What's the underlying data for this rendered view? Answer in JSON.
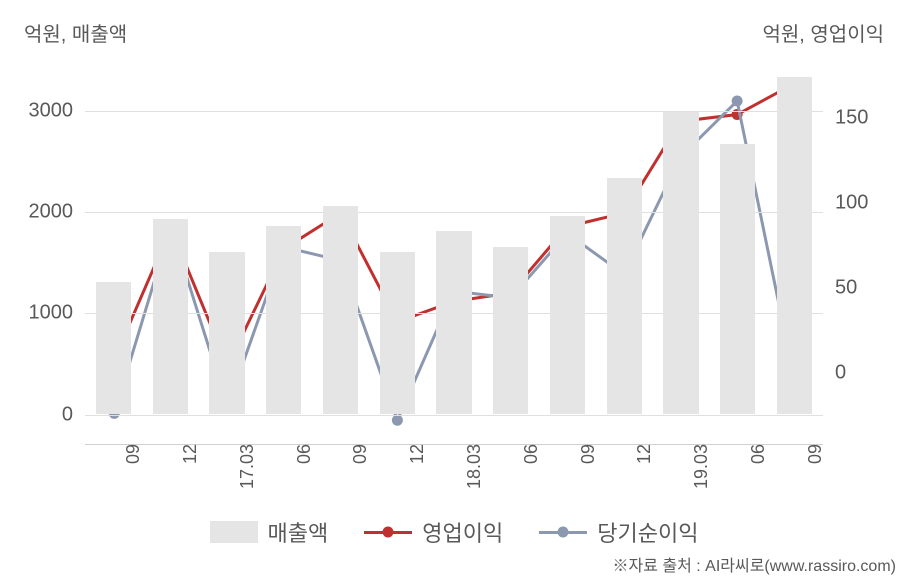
{
  "chart": {
    "left_axis_title": "억원, 매출액",
    "right_axis_title": "억원, 영업이익",
    "footer": "※자료 출처 : AI라씨로(www.rassiro.com)",
    "background_color": "#ffffff",
    "grid_color": "#e0e0e0",
    "text_color": "#595959",
    "categories": [
      "09",
      "12",
      "17.03",
      "06",
      "09",
      "12",
      "18.03",
      "06",
      "09",
      "12",
      "19.03",
      "06",
      "09"
    ],
    "y_left": {
      "min": -300,
      "max": 3600,
      "ticks": [
        0,
        1000,
        2000,
        3000
      ]
    },
    "y_right": {
      "min": -42,
      "max": 190,
      "ticks": [
        0,
        50,
        100,
        150
      ]
    },
    "bar_width_ratio": 0.62,
    "bar_color": "#e5e5e5",
    "series": {
      "revenue": {
        "label": "매출액",
        "axis": "left",
        "type": "bar",
        "values": [
          1300,
          1920,
          1600,
          1850,
          2050,
          1600,
          1800,
          1650,
          1950,
          2330,
          2980,
          2660,
          3320
        ]
      },
      "op_profit": {
        "label": "영업이익",
        "axis": "right",
        "type": "line",
        "color": "#c0302e",
        "marker": "circle",
        "marker_size": 11,
        "line_width": 3,
        "values": [
          8,
          85,
          4,
          73,
          94,
          30,
          42,
          47,
          86,
          94,
          148,
          152,
          170
        ]
      },
      "net_income": {
        "label": "당기순이익",
        "axis": "right",
        "type": "line",
        "color": "#8b98b0",
        "marker": "circle",
        "marker_size": 11,
        "line_width": 3,
        "values": [
          -24,
          86,
          -20,
          74,
          66,
          -28,
          48,
          44,
          82,
          58,
          127,
          160,
          -2
        ]
      }
    },
    "legend_order": [
      "revenue",
      "op_profit",
      "net_income"
    ]
  }
}
